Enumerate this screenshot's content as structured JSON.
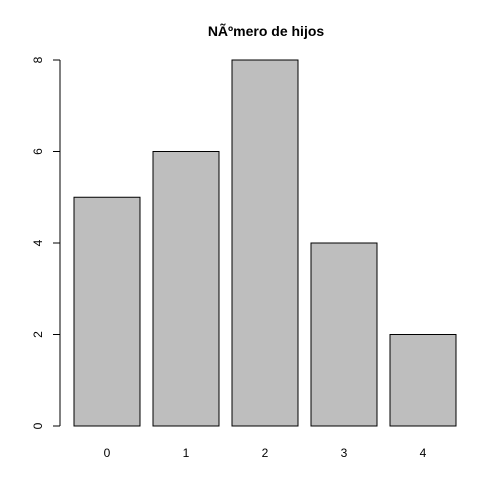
{
  "chart_data": {
    "type": "bar",
    "title": "NÃºmero de hijos",
    "xlabel": "",
    "ylabel": "",
    "categories": [
      "0",
      "1",
      "2",
      "3",
      "4"
    ],
    "values": [
      5,
      6,
      8,
      4,
      2
    ],
    "ylim": [
      0,
      8
    ],
    "y_ticks": [
      "0",
      "2",
      "4",
      "6",
      "8"
    ],
    "grid": false,
    "legend": "none",
    "colors": {
      "bar_fill": "#bebebe",
      "bar_stroke": "#000000",
      "axis": "#000000",
      "background": "#ffffff"
    }
  }
}
